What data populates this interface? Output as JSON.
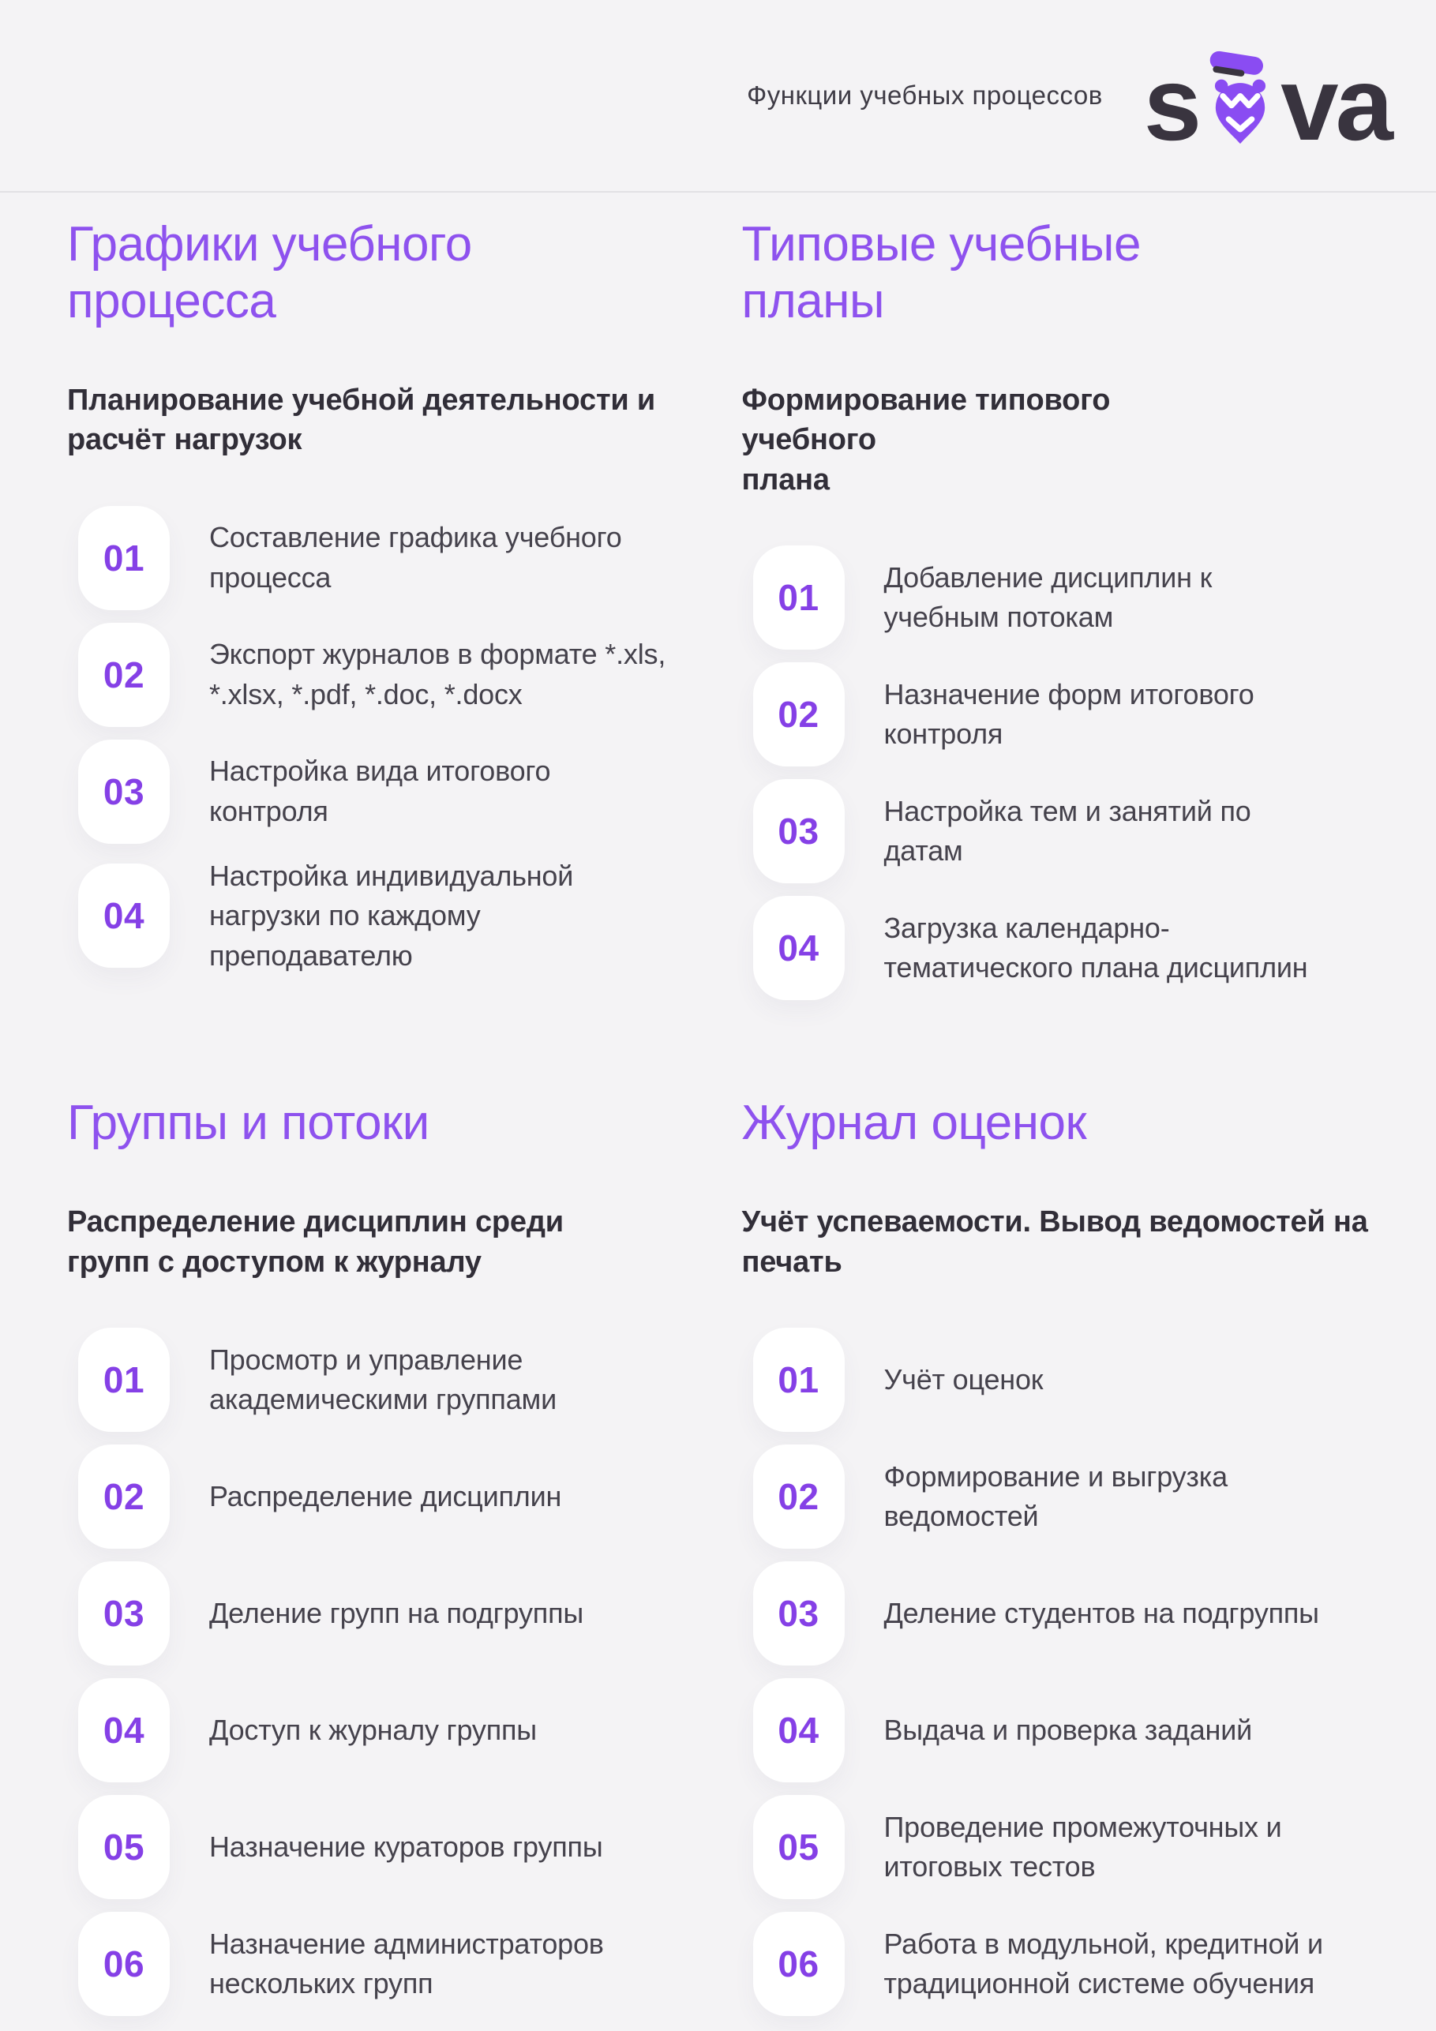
{
  "header": {
    "tagline": "Функции учебных процессов",
    "logo": {
      "text_left": "s",
      "text_right": "va",
      "icon": "owl-pin-icon"
    }
  },
  "colors": {
    "background": "#f4f3f5",
    "divider": "#e2e1e4",
    "heading_purple": "#8e52ee",
    "number_purple": "#8540e6",
    "logo_dark": "#39343f",
    "logo_purple": "#8a4cf2",
    "badge_bg": "#ffffff",
    "text_dark": "#312e38",
    "text_body": "#45424c"
  },
  "sections": [
    {
      "title": "Графики учебного\nпроцесса",
      "subtitle": "Планирование учебной деятельности и\nрасчёт нагрузок",
      "items": [
        {
          "num": "01",
          "label": "Составление графика учебного\nпроцесса"
        },
        {
          "num": "02",
          "label": "Экспорт журналов в формате *.xls,\n*.xlsx, *.pdf, *.doc, *.docx"
        },
        {
          "num": "03",
          "label": "Настройка вида итогового\nконтроля"
        },
        {
          "num": "04",
          "label": "Настройка индивидуальной\nнагрузки по каждому\nпреподавателю"
        }
      ]
    },
    {
      "title": "Типовые учебные\nпланы",
      "subtitle": "Формирование типового\nучебного\nплана",
      "items": [
        {
          "num": "01",
          "label": "Добавление дисциплин к\nучебным потокам"
        },
        {
          "num": "02",
          "label": "Назначение форм итогового\nконтроля"
        },
        {
          "num": "03",
          "label": "Настройка тем и занятий по\nдатам"
        },
        {
          "num": "04",
          "label": "Загрузка календарно-\nтематического плана дисциплин"
        }
      ]
    },
    {
      "title": "Группы и потоки",
      "subtitle": "Распределение дисциплин среди\nгрупп с доступом к журналу",
      "items": [
        {
          "num": "01",
          "label": "Просмотр и управление\nакадемическими группами"
        },
        {
          "num": "02",
          "label": "Распределение дисциплин"
        },
        {
          "num": "03",
          "label": "Деление групп на подгруппы"
        },
        {
          "num": "04",
          "label": "Доступ к журналу группы"
        },
        {
          "num": "05",
          "label": "Назначение кураторов группы"
        },
        {
          "num": "06",
          "label": "Назначение администраторов\nнескольких групп"
        }
      ]
    },
    {
      "title": "Журнал оценок",
      "subtitle": "Учёт успеваемости. Вывод ведомостей на\nпечать",
      "items": [
        {
          "num": "01",
          "label": "Учёт оценок"
        },
        {
          "num": "02",
          "label": "Формирование и выгрузка\nведомостей"
        },
        {
          "num": "03",
          "label": "Деление студентов на подгруппы"
        },
        {
          "num": "04",
          "label": "Выдача и проверка заданий"
        },
        {
          "num": "05",
          "label": "Проведение промежуточных и\nитоговых тестов"
        },
        {
          "num": "06",
          "label": "Работа в модульной, кредитной и\nтрадиционной системе обучения"
        }
      ]
    }
  ]
}
